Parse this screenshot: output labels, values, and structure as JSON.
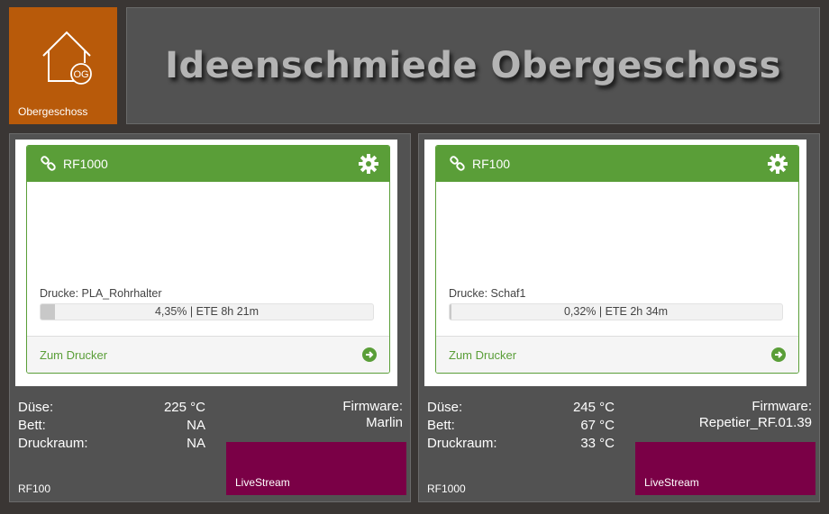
{
  "home_tile": {
    "label": "Obergeschoss",
    "badge": "OG",
    "icon": "house-icon",
    "color": "#b85a0a"
  },
  "title": "Ideenschmiede Obergeschoss",
  "printers": [
    {
      "name": "RF1000",
      "job": "Drucke: PLA_Rohrhalter",
      "progress_percent": 4.35,
      "progress_text": "4,35%   |   ETE 8h 21m",
      "link": "Zum Drucker",
      "stats": [
        {
          "key": "Düse:",
          "value": "225 °C"
        },
        {
          "key": "Bett:",
          "value": "NA"
        },
        {
          "key": "Druckraum:",
          "value": "NA"
        }
      ],
      "firmware_label": "Firmware:",
      "firmware": "Marlin",
      "livestream": "LiveStream",
      "panel_label": "RF100"
    },
    {
      "name": "RF100",
      "job": "Drucke: Schaf1",
      "progress_percent": 0.32,
      "progress_text": "0,32%   |   ETE 2h 34m",
      "link": "Zum Drucker",
      "stats": [
        {
          "key": "Düse:",
          "value": "245 °C"
        },
        {
          "key": "Bett:",
          "value": "67 °C"
        },
        {
          "key": "Druckraum:",
          "value": "33 °C"
        }
      ],
      "firmware_label": "Firmware:",
      "firmware": "Repetier_RF.01.39",
      "livestream": "LiveStream",
      "panel_label": "RF1000"
    }
  ],
  "colors": {
    "accent_green": "#5a9e38",
    "livestream": "#7a0046"
  }
}
